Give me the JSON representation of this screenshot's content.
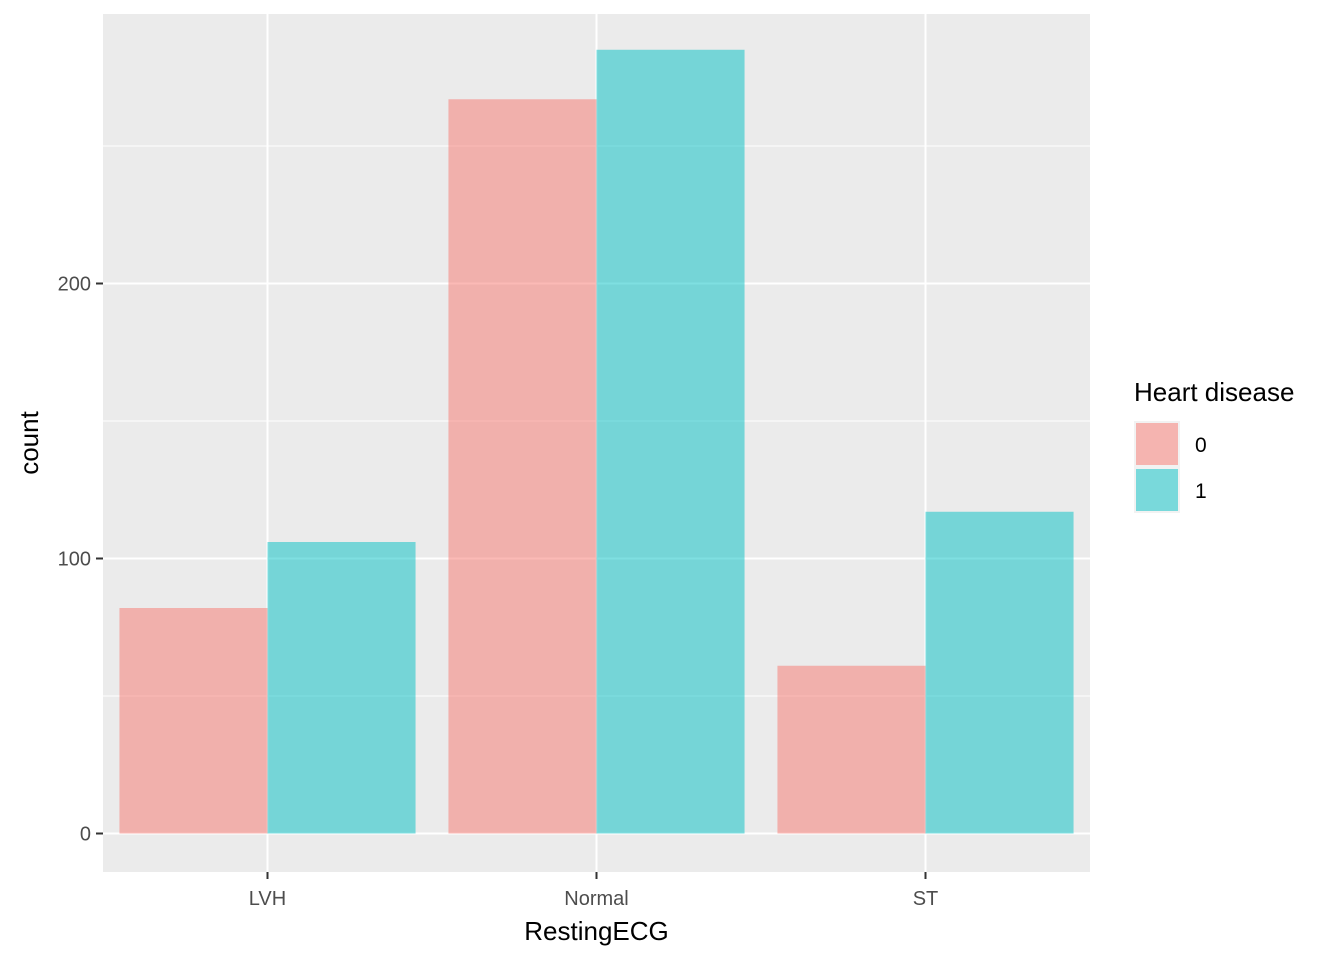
{
  "chart_data": {
    "type": "bar",
    "title": "",
    "xlabel": "RestingECG",
    "ylabel": "count",
    "categories": [
      "LVH",
      "Normal",
      "ST"
    ],
    "series": [
      {
        "name": "0",
        "values": [
          82,
          267,
          61
        ],
        "color": "#F8766D"
      },
      {
        "name": "1",
        "values": [
          106,
          285,
          117
        ],
        "color": "#00BFC4"
      }
    ],
    "ylim": [
      -14,
      298
    ],
    "yticks": [
      0,
      100,
      200
    ],
    "grid": true,
    "bar_opacity": 0.5,
    "panel_background": "#EBEBEB",
    "legend": {
      "title": "Heart disease",
      "position": "right"
    }
  }
}
